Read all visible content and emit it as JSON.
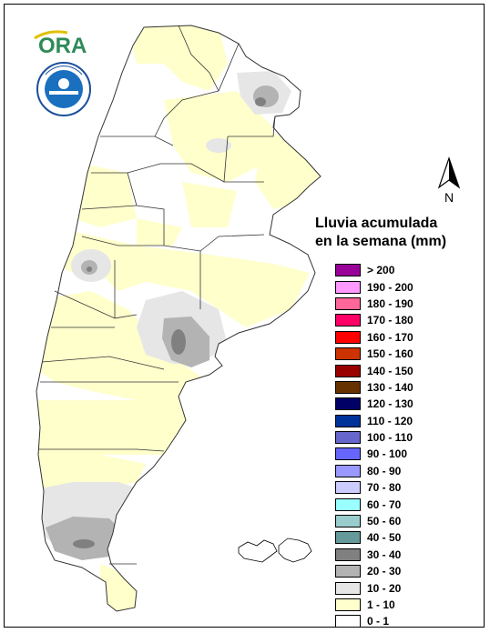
{
  "legend": {
    "title_line1": "Lluvia acumulada",
    "title_line2": "en la semana (mm)",
    "items": [
      {
        "label": "> 200",
        "color": "#990099"
      },
      {
        "label": "190 - 200",
        "color": "#ff99ff"
      },
      {
        "label": "180 - 190",
        "color": "#ff6699"
      },
      {
        "label": "170 - 180",
        "color": "#ff0066"
      },
      {
        "label": "160 - 170",
        "color": "#ff0000"
      },
      {
        "label": "150 - 160",
        "color": "#cc3300"
      },
      {
        "label": "140 - 150",
        "color": "#990000"
      },
      {
        "label": "130 - 140",
        "color": "#663300"
      },
      {
        "label": "120 - 130",
        "color": "#000066"
      },
      {
        "label": "110 - 120",
        "color": "#003399"
      },
      {
        "label": "100 - 110",
        "color": "#6666cc"
      },
      {
        "label": "90 - 100",
        "color": "#6666ff"
      },
      {
        "label": "80 - 90",
        "color": "#9999ff"
      },
      {
        "label": "70 - 80",
        "color": "#ccccff"
      },
      {
        "label": "60 - 70",
        "color": "#99ffff"
      },
      {
        "label": "50 - 60",
        "color": "#99cccc"
      },
      {
        "label": "40 - 50",
        "color": "#669999"
      },
      {
        "label": "30 - 40",
        "color": "#808080"
      },
      {
        "label": "20 - 30",
        "color": "#b3b3b3"
      },
      {
        "label": "10 - 20",
        "color": "#e6e6e6"
      },
      {
        "label": "1 - 10",
        "color": "#ffffcc"
      },
      {
        "label": "0 - 1",
        "color": "#ffffff"
      }
    ]
  },
  "logos": {
    "ora_text": "ORA",
    "north_label": "N"
  }
}
